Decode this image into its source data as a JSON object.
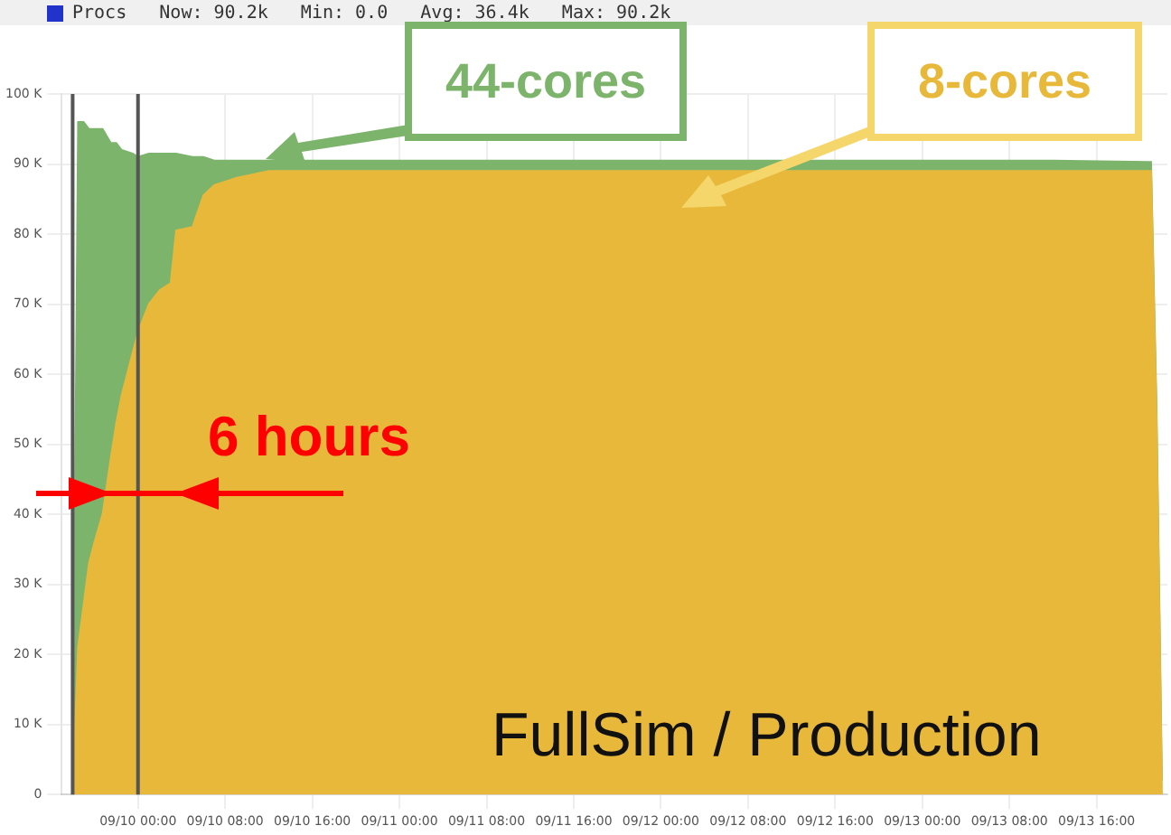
{
  "chart_data": {
    "type": "area",
    "stacked": true,
    "grid": true,
    "legend": false,
    "x": [
      "--09-09T18:00",
      "--09-09T18:30",
      "--09-09T19:00",
      "--09-09T19:30",
      "--09-09T20:00",
      "--09-09T20:45",
      "--09-09T21:30",
      "--09-09T22:00",
      "--09-09T22:30",
      "--09-09T23:30",
      "--09-10T00:00",
      "--09-10T01:00",
      "--09-10T02:00",
      "--09-10T03:00",
      "--09-10T03:30",
      "--09-10T05:00",
      "--09-10T06:00",
      "--09-10T07:00",
      "--09-10T09:00",
      "--09-10T12:00",
      "--09-10T20:00",
      "--09-11T04:00",
      "--09-11T12:00",
      "--09-11T20:00",
      "--09-12T04:00",
      "--09-12T16:00",
      "--09-12T20:00",
      "--09-13T04:00",
      "--09-13T12:00",
      "--09-13T21:00",
      "--09-13T21:30",
      "--09-13T22:00"
    ],
    "series": [
      {
        "name": "8-cores",
        "color": "#e8b83a",
        "values": [
          0,
          21,
          27,
          33,
          36,
          40,
          48,
          53,
          57,
          63,
          66,
          70,
          72,
          73,
          80.5,
          81,
          85.5,
          87,
          88,
          89,
          89,
          89,
          89,
          89,
          89,
          89,
          89,
          89,
          89,
          89,
          54,
          0
        ]
      },
      {
        "name": "44-cores",
        "color": "#7db46c",
        "values": [
          0,
          75,
          69,
          62,
          59,
          55,
          45,
          40,
          35,
          28.5,
          25,
          21.5,
          19.5,
          18.5,
          11,
          10,
          5.5,
          3.5,
          2.5,
          1.5,
          1.5,
          1.5,
          1.5,
          1.5,
          1.5,
          1.5,
          1.5,
          1.5,
          1.5,
          1.3,
          1.5,
          2
        ]
      }
    ],
    "xlim": [
      "--09-09T17:00",
      "--09-13T22:30"
    ],
    "xticks": [
      {
        "value": "--09-10T00:00",
        "label": "09/10 00:00"
      },
      {
        "value": "--09-10T08:00",
        "label": "09/10 08:00"
      },
      {
        "value": "--09-10T16:00",
        "label": "09/10 16:00"
      },
      {
        "value": "--09-11T00:00",
        "label": "09/11 00:00"
      },
      {
        "value": "--09-11T08:00",
        "label": "09/11 08:00"
      },
      {
        "value": "--09-11T16:00",
        "label": "09/11 16:00"
      },
      {
        "value": "--09-12T00:00",
        "label": "09/12 00:00"
      },
      {
        "value": "--09-12T08:00",
        "label": "09/12 08:00"
      },
      {
        "value": "--09-12T16:00",
        "label": "09/12 16:00"
      },
      {
        "value": "--09-13T00:00",
        "label": "09/13 00:00"
      },
      {
        "value": "--09-13T08:00",
        "label": "09/13 08:00"
      },
      {
        "value": "--09-13T16:00",
        "label": "09/13 16:00"
      }
    ],
    "ylim": [
      0,
      100
    ],
    "yticks": [
      0,
      {
        "value": 10,
        "label": "10 K"
      },
      {
        "value": 20,
        "label": "20 K"
      },
      {
        "value": 30,
        "label": "30 K"
      },
      {
        "value": 40,
        "label": "40 K"
      },
      {
        "value": 50,
        "label": "50 K"
      },
      {
        "value": 60,
        "label": "60 K"
      },
      {
        "value": 70,
        "label": "70 K"
      },
      {
        "value": 80,
        "label": "80 K"
      },
      {
        "value": 90,
        "label": "90 K"
      },
      {
        "value": 100,
        "label": "100 K"
      }
    ],
    "ref_lines": [
      {
        "axis": "x",
        "value": "--09-09T18:00",
        "color": "#555555"
      },
      {
        "axis": "x",
        "value": "--09-10T00:00",
        "color": "#555555"
      }
    ],
    "annotations": [
      "Procs   Now: 90.2k   Min: 0.0   Avg: 36.4k   Max: 90.2k",
      "6 hours",
      "FullSim / Production"
    ]
  }
}
